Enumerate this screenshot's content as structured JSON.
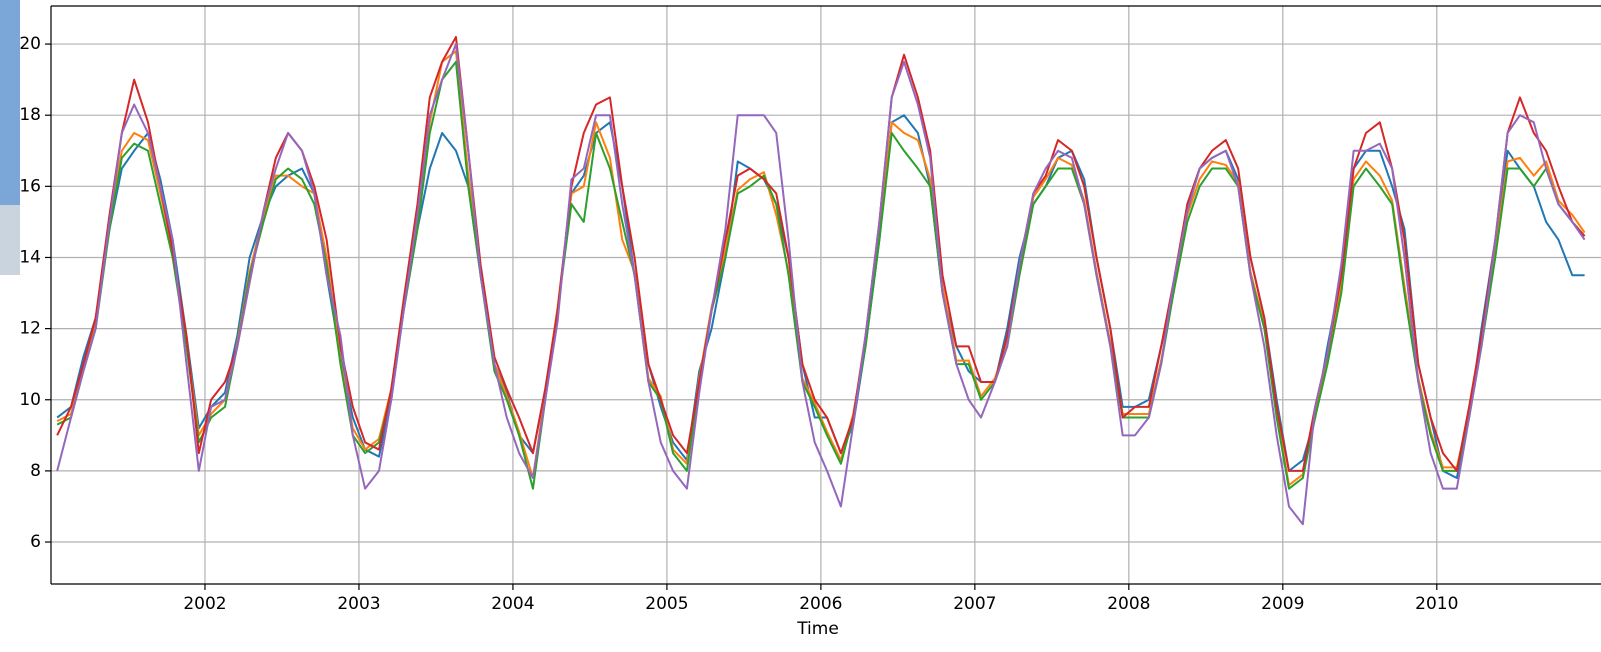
{
  "chart_data": {
    "type": "line",
    "xlabel": "Time",
    "x": [
      2001.04,
      2001.13,
      2001.21,
      2001.29,
      2001.38,
      2001.46,
      2001.54,
      2001.63,
      2001.71,
      2001.79,
      2001.88,
      2001.96,
      2002.04,
      2002.13,
      2002.21,
      2002.29,
      2002.38,
      2002.46,
      2002.54,
      2002.63,
      2002.71,
      2002.79,
      2002.88,
      2002.96,
      2003.04,
      2003.13,
      2003.21,
      2003.29,
      2003.38,
      2003.46,
      2003.54,
      2003.63,
      2003.71,
      2003.79,
      2003.88,
      2003.96,
      2004.04,
      2004.13,
      2004.21,
      2004.29,
      2004.38,
      2004.46,
      2004.54,
      2004.63,
      2004.71,
      2004.79,
      2004.88,
      2004.96,
      2005.04,
      2005.13,
      2005.21,
      2005.29,
      2005.38,
      2005.46,
      2005.54,
      2005.63,
      2005.71,
      2005.79,
      2005.88,
      2005.96,
      2006.04,
      2006.13,
      2006.21,
      2006.29,
      2006.38,
      2006.46,
      2006.54,
      2006.63,
      2006.71,
      2006.79,
      2006.88,
      2006.96,
      2007.04,
      2007.13,
      2007.21,
      2007.29,
      2007.38,
      2007.46,
      2007.54,
      2007.63,
      2007.71,
      2007.79,
      2007.88,
      2007.96,
      2008.04,
      2008.13,
      2008.21,
      2008.29,
      2008.38,
      2008.46,
      2008.54,
      2008.63,
      2008.71,
      2008.79,
      2008.88,
      2008.96,
      2009.04,
      2009.13,
      2009.21,
      2009.29,
      2009.38,
      2009.46,
      2009.54,
      2009.63,
      2009.71,
      2009.79,
      2009.88,
      2009.96,
      2010.04,
      2010.13,
      2010.21,
      2010.29,
      2010.38,
      2010.46,
      2010.54,
      2010.63,
      2010.71,
      2010.79,
      2010.88,
      2010.96
    ],
    "series": [
      {
        "color": "#1f77b4",
        "values": [
          9.5,
          9.8,
          11.2,
          12.3,
          14.8,
          16.5,
          17.0,
          17.5,
          16.2,
          14.5,
          11.8,
          9.2,
          9.8,
          10.2,
          11.8,
          14.0,
          15.2,
          16.0,
          16.3,
          16.5,
          15.8,
          13.5,
          11.2,
          9.5,
          8.6,
          8.4,
          10.0,
          12.5,
          14.8,
          16.5,
          17.5,
          17.0,
          16.0,
          13.5,
          11.0,
          10.2,
          9.0,
          8.5,
          10.3,
          12.5,
          15.8,
          16.3,
          17.5,
          17.8,
          16.0,
          13.5,
          11.0,
          9.8,
          8.8,
          8.3,
          10.8,
          12.0,
          14.0,
          16.7,
          16.5,
          16.2,
          15.5,
          14.0,
          11.0,
          9.5,
          9.5,
          8.5,
          9.3,
          11.5,
          14.5,
          17.8,
          18.0,
          17.5,
          16.0,
          13.0,
          11.5,
          10.8,
          10.5,
          10.5,
          12.0,
          14.0,
          15.5,
          16.0,
          16.8,
          17.0,
          16.2,
          14.0,
          12.0,
          9.8,
          9.8,
          10.0,
          11.5,
          13.0,
          15.5,
          16.5,
          16.8,
          17.0,
          16.2,
          14.0,
          12.3,
          10.0,
          8.0,
          8.3,
          9.5,
          11.5,
          13.5,
          16.5,
          17.0,
          17.0,
          16.0,
          14.8,
          11.0,
          9.5,
          8.0,
          7.8,
          9.5,
          12.0,
          14.5,
          17.0,
          16.5,
          16.0,
          15.0,
          14.5,
          13.5,
          13.5
        ]
      },
      {
        "color": "#ff7f0e",
        "values": [
          9.4,
          9.6,
          10.9,
          12.1,
          15.0,
          17.0,
          17.5,
          17.3,
          15.8,
          14.2,
          11.6,
          9.0,
          9.6,
          10.0,
          11.6,
          13.6,
          15.2,
          16.3,
          16.3,
          16.0,
          15.8,
          14.0,
          11.1,
          9.2,
          8.6,
          8.9,
          10.3,
          12.6,
          15.0,
          17.8,
          19.5,
          19.8,
          16.3,
          13.7,
          11.0,
          10.1,
          9.1,
          7.8,
          10.2,
          12.6,
          15.8,
          16.0,
          17.8,
          16.8,
          14.5,
          13.6,
          10.6,
          10.1,
          8.6,
          8.2,
          10.6,
          12.6,
          14.2,
          15.9,
          16.2,
          16.4,
          15.2,
          13.6,
          10.6,
          9.9,
          9.1,
          8.3,
          9.6,
          11.6,
          14.7,
          17.8,
          17.5,
          17.3,
          16.2,
          13.2,
          11.1,
          11.1,
          10.1,
          10.6,
          11.6,
          13.6,
          15.7,
          16.2,
          16.8,
          16.6,
          15.6,
          13.6,
          11.6,
          9.6,
          9.6,
          9.6,
          11.1,
          13.1,
          15.2,
          16.2,
          16.7,
          16.6,
          16.1,
          13.6,
          12.1,
          9.6,
          7.6,
          7.9,
          9.6,
          11.1,
          13.2,
          16.2,
          16.7,
          16.3,
          15.6,
          13.2,
          10.6,
          9.1,
          8.1,
          8.1,
          9.6,
          11.6,
          14.2,
          16.7,
          16.8,
          16.3,
          16.7,
          15.6,
          15.2,
          14.7
        ]
      },
      {
        "color": "#2ca02c",
        "values": [
          9.3,
          9.5,
          10.8,
          12.0,
          14.8,
          16.8,
          17.2,
          17.0,
          15.5,
          14.0,
          11.5,
          8.8,
          9.5,
          9.8,
          11.5,
          13.5,
          15.0,
          16.2,
          16.5,
          16.2,
          15.5,
          13.8,
          11.0,
          9.0,
          8.5,
          8.8,
          10.2,
          12.5,
          14.8,
          17.5,
          19.0,
          19.5,
          16.0,
          13.5,
          10.8,
          10.0,
          9.0,
          7.5,
          10.0,
          12.5,
          15.5,
          15.0,
          17.5,
          16.5,
          15.0,
          13.5,
          10.5,
          10.0,
          8.5,
          8.0,
          10.5,
          12.5,
          14.0,
          15.8,
          16.0,
          16.3,
          15.5,
          13.5,
          10.5,
          9.8,
          9.0,
          8.2,
          9.5,
          11.5,
          14.5,
          17.5,
          17.0,
          16.5,
          16.0,
          13.0,
          11.0,
          11.0,
          10.0,
          10.5,
          11.5,
          13.5,
          15.5,
          16.0,
          16.5,
          16.5,
          15.5,
          13.5,
          11.5,
          9.5,
          9.5,
          9.5,
          11.0,
          13.0,
          15.0,
          16.0,
          16.5,
          16.5,
          16.0,
          13.5,
          12.0,
          9.5,
          7.5,
          7.8,
          9.5,
          11.0,
          13.0,
          16.0,
          16.5,
          16.0,
          15.5,
          13.0,
          10.5,
          9.0,
          8.0,
          8.0,
          9.5,
          11.5,
          14.0,
          16.5,
          16.5,
          16.0,
          16.5,
          15.5,
          15.0,
          14.6
        ]
      },
      {
        "color": "#d62728",
        "values": [
          9.0,
          9.8,
          11.0,
          12.3,
          15.2,
          17.5,
          19.0,
          17.8,
          16.0,
          14.2,
          11.8,
          8.5,
          10.0,
          10.5,
          11.5,
          13.3,
          15.3,
          16.8,
          17.5,
          17.0,
          16.0,
          14.5,
          11.5,
          9.8,
          8.8,
          8.6,
          10.3,
          12.8,
          15.5,
          18.5,
          19.5,
          20.2,
          17.0,
          13.8,
          11.2,
          10.3,
          9.5,
          8.5,
          10.3,
          12.5,
          16.0,
          17.5,
          18.3,
          18.5,
          16.0,
          14.0,
          11.0,
          10.0,
          9.0,
          8.5,
          10.5,
          12.5,
          14.5,
          16.3,
          16.5,
          16.2,
          15.8,
          14.0,
          11.0,
          10.0,
          9.5,
          8.5,
          9.5,
          11.8,
          15.0,
          18.5,
          19.7,
          18.5,
          17.0,
          13.5,
          11.5,
          11.5,
          10.5,
          10.5,
          11.8,
          13.8,
          15.8,
          16.3,
          17.3,
          17.0,
          16.0,
          14.0,
          12.0,
          9.5,
          9.8,
          9.8,
          11.5,
          13.3,
          15.5,
          16.5,
          17.0,
          17.3,
          16.5,
          14.0,
          12.3,
          9.8,
          8.0,
          8.0,
          9.8,
          11.3,
          13.5,
          16.5,
          17.5,
          17.8,
          16.5,
          14.5,
          11.0,
          9.5,
          8.5,
          8.0,
          9.8,
          11.8,
          14.5,
          17.5,
          18.5,
          17.5,
          17.0,
          16.0,
          15.0,
          14.6
        ]
      },
      {
        "color": "#9467bd",
        "values": [
          8.0,
          9.5,
          10.8,
          12.0,
          15.0,
          17.5,
          18.3,
          17.5,
          16.0,
          14.5,
          11.0,
          8.0,
          9.8,
          10.0,
          11.5,
          13.3,
          15.3,
          16.5,
          17.5,
          17.0,
          15.8,
          13.5,
          11.8,
          9.0,
          7.5,
          8.0,
          10.0,
          12.5,
          15.2,
          18.0,
          19.0,
          20.0,
          17.0,
          13.5,
          11.0,
          9.5,
          8.5,
          7.8,
          10.0,
          12.2,
          16.2,
          16.5,
          18.0,
          18.0,
          15.5,
          13.5,
          10.5,
          8.8,
          8.0,
          7.5,
          10.2,
          12.5,
          14.8,
          18.0,
          18.0,
          18.0,
          17.5,
          14.5,
          10.5,
          8.8,
          8.0,
          7.0,
          9.3,
          11.8,
          15.0,
          18.5,
          19.5,
          18.3,
          16.8,
          13.0,
          11.0,
          10.0,
          9.5,
          10.5,
          11.5,
          13.8,
          15.8,
          16.5,
          17.0,
          16.8,
          15.5,
          13.5,
          11.5,
          9.0,
          9.0,
          9.5,
          11.0,
          13.3,
          15.3,
          16.5,
          16.8,
          17.0,
          16.0,
          13.5,
          11.5,
          9.0,
          7.0,
          6.5,
          9.8,
          11.3,
          13.8,
          17.0,
          17.0,
          17.2,
          16.5,
          14.0,
          10.5,
          8.5,
          7.5,
          7.5,
          9.5,
          11.5,
          14.5,
          17.5,
          18.0,
          17.8,
          16.5,
          15.5,
          15.0,
          14.5
        ]
      }
    ],
    "xlim": [
      2001.0,
      2011.06
    ],
    "xticks": [
      2002,
      2003,
      2004,
      2005,
      2006,
      2007,
      2008,
      2009,
      2010
    ],
    "ylim": [
      4.82,
      21.07
    ],
    "yticks": [
      6,
      8,
      10,
      12,
      14,
      16,
      18,
      20
    ],
    "grid": true
  }
}
